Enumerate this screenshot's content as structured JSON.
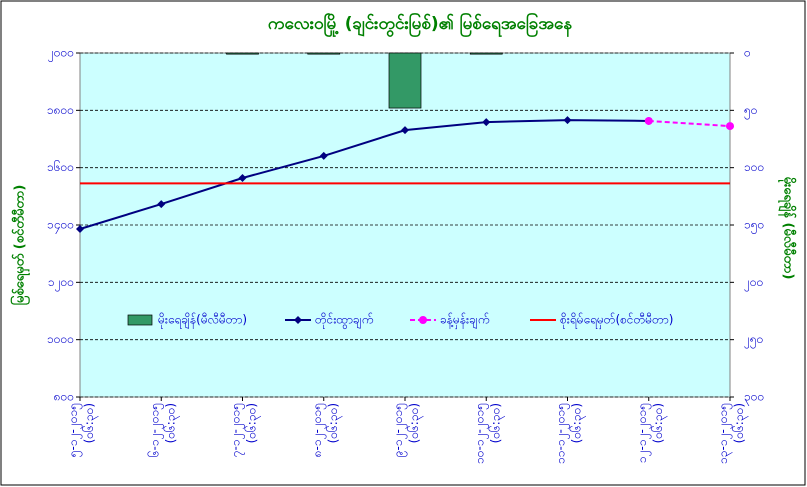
{
  "chart_data": {
    "type": "combo",
    "title": "ကလေးဝမြို့ (ချင်းတွင်းမြစ်)၏ မြစ်ရေအခြေအနေ",
    "ylabel": "မြစ်ရေမှတ် (စင်တီမီတာ)",
    "y2label": "မိုးရေချိန် (မီလီမီတာ)",
    "categories": [
      "၅-၁၂-၂၀၁၅ (၀၆:၃၀)",
      "၆-၁၂-၂၀၁၅ (၀၆:၃၀)",
      "၇-၁၂-၂၀၁၅ (၀၆:၃၀)",
      "၈-၁၂-၂၀၁၅ (၀၆:၃၀)",
      "၉-၁၂-၂၀၁၅ (၀၆:၃၀)",
      "၁၀-၁၂-၂၀၁၅ (၀၆:၃၀)",
      "၁၁-၁၂-၂၀၁၅ (၀၆:၃၀)",
      "၁၂-၁၂-၂၀၁၅ (၀၆:၃၀)",
      "၁၃-၁၂-၂၀၁၅ (၀၆:၃၀)"
    ],
    "series": [
      {
        "name": "မိုးရေချိန်(မီလီမီတာ)",
        "kind": "bar",
        "axis": "y2",
        "color": "#339966",
        "values": [
          0,
          0,
          1,
          1,
          48,
          1,
          0,
          0,
          0
        ]
      },
      {
        "name": "တိုင်းထွာချက်",
        "kind": "line",
        "color": "#000080",
        "marker": "diamond",
        "values": [
          1386,
          1473,
          1564,
          1641,
          1731,
          1759,
          1766,
          1763,
          null
        ]
      },
      {
        "name": "ခန့်မှန်းချက်",
        "kind": "line",
        "color": "#ff00ff",
        "dashed": true,
        "marker": "circle",
        "values": [
          null,
          null,
          null,
          null,
          null,
          null,
          null,
          1763,
          1745
        ]
      },
      {
        "name": "စိုးရိမ်ရေမှတ်(စင်တီမီတာ)",
        "kind": "hline",
        "color": "#ff0000",
        "values": [
          1545,
          1545,
          1545,
          1545,
          1545,
          1545,
          1545,
          1545,
          1545
        ]
      }
    ],
    "ylim": [
      800,
      2000
    ],
    "yticks": [
      {
        "value": 800,
        "label": "၈၀၀"
      },
      {
        "value": 1000,
        "label": "၁၀၀၀"
      },
      {
        "value": 1200,
        "label": "၁၂၀၀"
      },
      {
        "value": 1400,
        "label": "၁၄၀၀"
      },
      {
        "value": 1600,
        "label": "၁၆၀၀"
      },
      {
        "value": 1800,
        "label": "၁၈၀၀"
      },
      {
        "value": 2000,
        "label": "၂၀၀၀"
      }
    ],
    "y2lim": [
      0,
      300
    ],
    "y2_reversed": true,
    "y2ticks": [
      {
        "value": 0,
        "label": "၀"
      },
      {
        "value": 50,
        "label": "၅၀"
      },
      {
        "value": 100,
        "label": "၁၀၀"
      },
      {
        "value": 150,
        "label": "၁၅၀"
      },
      {
        "value": 200,
        "label": "၂၀၀"
      },
      {
        "value": 250,
        "label": "၂၅၀"
      },
      {
        "value": 300,
        "label": "၃၀၀"
      }
    ],
    "grid": true
  }
}
